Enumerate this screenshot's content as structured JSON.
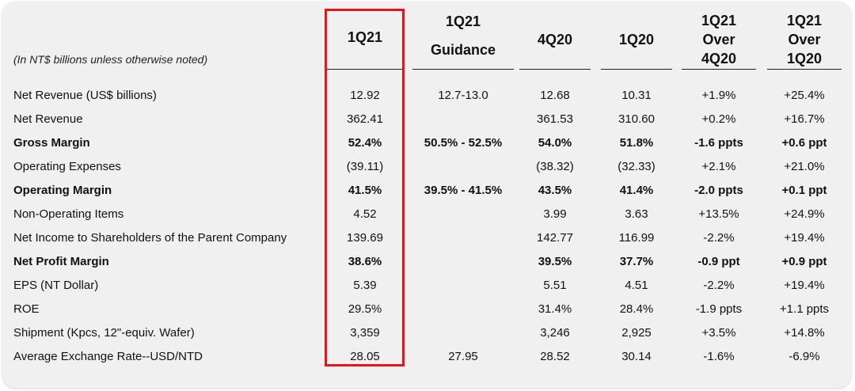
{
  "subtitle": "(In NT$ billions unless otherwise noted)",
  "headers": [
    {
      "lines": [
        "1Q21"
      ]
    },
    {
      "lines": [
        "1Q21",
        "Guidance"
      ]
    },
    {
      "lines": [
        "4Q20"
      ]
    },
    {
      "lines": [
        "1Q20"
      ]
    },
    {
      "lines": [
        "1Q21",
        "Over",
        "4Q20"
      ]
    },
    {
      "lines": [
        "1Q21",
        "Over",
        "1Q20"
      ]
    }
  ],
  "rows": [
    {
      "label": "Net Revenue (US$ billions)",
      "bold": false,
      "values": [
        "12.92",
        "12.7-13.0",
        "12.68",
        "10.31",
        "+1.9%",
        "+25.4%"
      ]
    },
    {
      "label": "Net Revenue",
      "bold": false,
      "values": [
        "362.41",
        "",
        "361.53",
        "310.60",
        "+0.2%",
        "+16.7%"
      ]
    },
    {
      "label": "Gross Margin",
      "bold": true,
      "values": [
        "52.4%",
        "50.5% - 52.5%",
        "54.0%",
        "51.8%",
        "-1.6 ppts",
        "+0.6 ppt"
      ]
    },
    {
      "label": "Operating Expenses",
      "bold": false,
      "values": [
        "(39.11)",
        "",
        "(38.32)",
        "(32.33)",
        "+2.1%",
        "+21.0%"
      ]
    },
    {
      "label": "Operating Margin",
      "bold": true,
      "values": [
        "41.5%",
        "39.5% - 41.5%",
        "43.5%",
        "41.4%",
        "-2.0 ppts",
        "+0.1 ppt"
      ]
    },
    {
      "label": "Non-Operating Items",
      "bold": false,
      "values": [
        "4.52",
        "",
        "3.99",
        "3.63",
        "+13.5%",
        "+24.9%"
      ]
    },
    {
      "label": "Net Income to Shareholders of the Parent Company",
      "bold": false,
      "values": [
        "139.69",
        "",
        "142.77",
        "116.99",
        "-2.2%",
        "+19.4%"
      ]
    },
    {
      "label": "Net Profit Margin",
      "bold": true,
      "values": [
        "38.6%",
        "",
        "39.5%",
        "37.7%",
        "-0.9 ppt",
        "+0.9 ppt"
      ]
    },
    {
      "label": "EPS (NT Dollar)",
      "bold": false,
      "values": [
        "5.39",
        "",
        "5.51",
        "4.51",
        "-2.2%",
        "+19.4%"
      ]
    },
    {
      "label": "ROE",
      "bold": false,
      "values": [
        "29.5%",
        "",
        "31.4%",
        "28.4%",
        "-1.9 ppts",
        "+1.1 ppts"
      ]
    },
    {
      "label": "Shipment (Kpcs, 12\"-equiv. Wafer)",
      "bold": false,
      "values": [
        "3,359",
        "",
        "3,246",
        "2,925",
        "+3.5%",
        "+14.8%"
      ]
    },
    {
      "label": "Average Exchange Rate--USD/NTD",
      "bold": false,
      "values": [
        "28.05",
        "27.95",
        "28.52",
        "30.14",
        "-1.6%",
        "-6.9%"
      ]
    }
  ],
  "colors": {
    "highlight": "#e8141b",
    "panel": "#f0f0f0",
    "text": "#111111"
  }
}
